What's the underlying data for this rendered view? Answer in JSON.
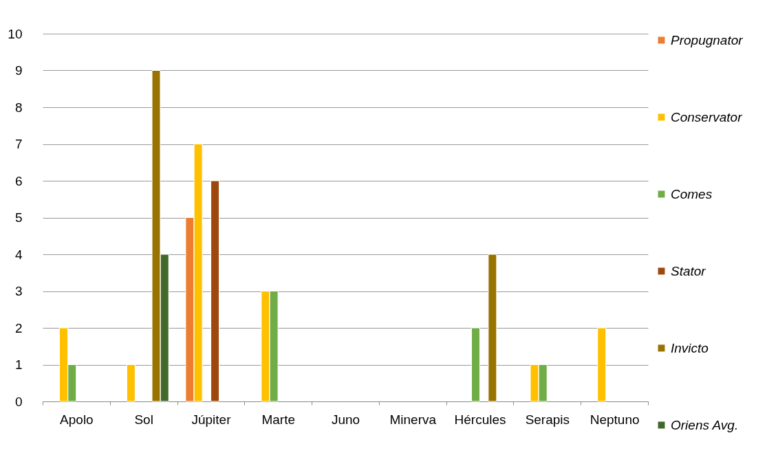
{
  "chart_data": {
    "type": "bar",
    "categories": [
      "Apolo",
      "Sol",
      "Júpiter",
      "Marte",
      "Juno",
      "Minerva",
      "Hércules",
      "Serapis",
      "Neptuno"
    ],
    "series": [
      {
        "name": "Propugnator",
        "color": "#ed7d31",
        "values": [
          null,
          null,
          5,
          null,
          null,
          null,
          null,
          null,
          null
        ]
      },
      {
        "name": "Conservator",
        "color": "#ffc000",
        "values": [
          2,
          1,
          7,
          3,
          null,
          null,
          null,
          1,
          2
        ]
      },
      {
        "name": "Comes",
        "color": "#70ad47",
        "values": [
          1,
          null,
          null,
          3,
          null,
          null,
          2,
          1,
          null
        ]
      },
      {
        "name": "Stator",
        "color": "#9e480e",
        "values": [
          null,
          null,
          6,
          null,
          null,
          null,
          null,
          null,
          null
        ]
      },
      {
        "name": "Invicto",
        "color": "#997300",
        "values": [
          null,
          9,
          null,
          null,
          null,
          null,
          4,
          null,
          null
        ]
      },
      {
        "name": "Oriens Avg.",
        "color": "#43682b",
        "values": [
          null,
          4,
          null,
          null,
          null,
          null,
          null,
          null,
          null
        ]
      }
    ],
    "ylim": [
      0,
      10
    ],
    "yticks": [
      0,
      1,
      2,
      3,
      4,
      5,
      6,
      7,
      8,
      9,
      10
    ],
    "grid": "y",
    "legend": "right"
  }
}
